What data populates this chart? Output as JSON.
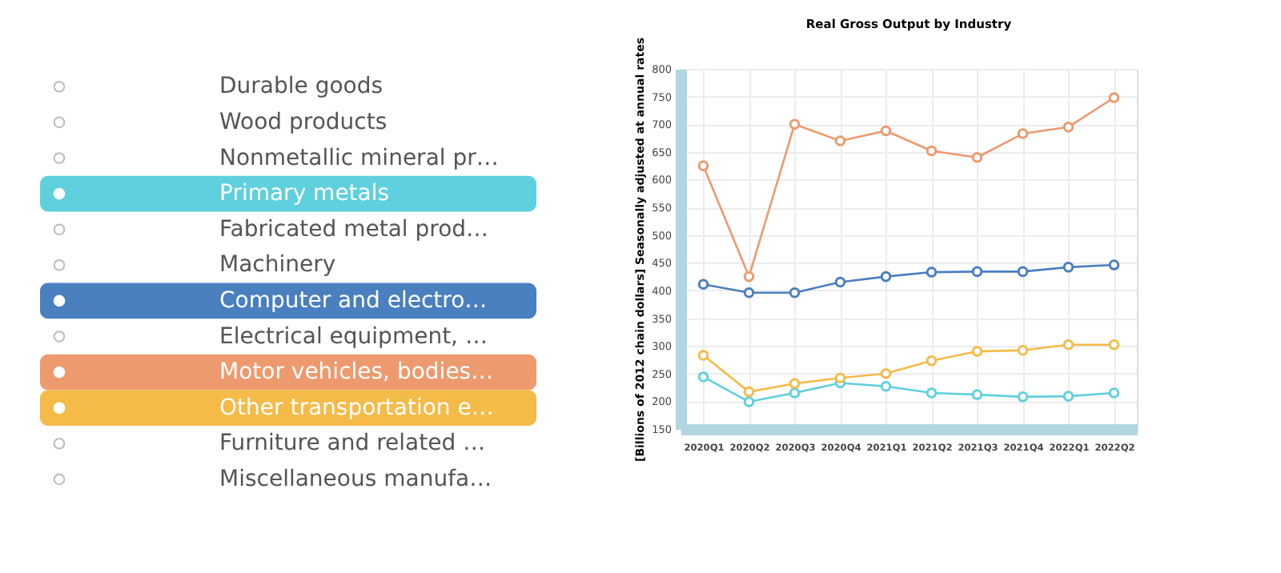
{
  "chart_data": {
    "type": "line",
    "title": "Real Gross Output by Industry",
    "ylabel": "[Billions of 2012 chain dollars] Seasonally adjusted at annual rates",
    "categories": [
      "2020Q1",
      "2020Q2",
      "2020Q3",
      "2020Q4",
      "2021Q1",
      "2021Q2",
      "2021Q3",
      "2021Q4",
      "2022Q1",
      "2022Q2"
    ],
    "ylim": [
      150,
      800
    ],
    "yticks": [
      150,
      200,
      250,
      300,
      350,
      400,
      450,
      500,
      550,
      600,
      650,
      700,
      750,
      800
    ],
    "grid": true,
    "legend": "left",
    "marker": "circle",
    "line_style": "solid",
    "series": [
      {
        "name": "Durable goods",
        "color": null,
        "values": [
          null,
          null,
          null,
          null,
          null,
          null,
          null,
          null,
          null,
          null
        ]
      },
      {
        "name": "Wood products",
        "color": null,
        "values": [
          null,
          null,
          null,
          null,
          null,
          null,
          null,
          null,
          null,
          null
        ]
      },
      {
        "name": "Nonmetallic mineral pr…",
        "color": null,
        "values": [
          null,
          null,
          null,
          null,
          null,
          null,
          null,
          null,
          null,
          null
        ]
      },
      {
        "name": "Primary metals",
        "color": "#5fd0de",
        "values": [
          244,
          199,
          215,
          233,
          227,
          215,
          212,
          208,
          209,
          215
        ]
      },
      {
        "name": "Fabricated metal prod…",
        "color": null,
        "values": [
          null,
          null,
          null,
          null,
          null,
          null,
          null,
          null,
          null,
          null
        ]
      },
      {
        "name": "Machinery",
        "color": null,
        "values": [
          null,
          null,
          null,
          null,
          null,
          null,
          null,
          null,
          null,
          null
        ]
      },
      {
        "name": "Computer and electro…",
        "color": "#4a7fc0",
        "values": [
          411,
          396,
          396,
          415,
          425,
          433,
          434,
          434,
          442,
          446
        ]
      },
      {
        "name": "Electrical equipment, …",
        "color": null,
        "values": [
          null,
          null,
          null,
          null,
          null,
          null,
          null,
          null,
          null,
          null
        ]
      },
      {
        "name": "Motor vehicles, bodies…",
        "color": "#ec9a6e",
        "values": [
          625,
          425,
          700,
          670,
          688,
          652,
          640,
          683,
          695,
          748
        ]
      },
      {
        "name": "Other transportation e…",
        "color": "#f5bb48",
        "values": [
          283,
          217,
          232,
          242,
          250,
          273,
          290,
          292,
          302,
          302
        ]
      },
      {
        "name": "Furniture and related …",
        "color": null,
        "values": [
          null,
          null,
          null,
          null,
          null,
          null,
          null,
          null,
          null,
          null
        ]
      },
      {
        "name": "Miscellaneous manufa…",
        "color": null,
        "values": [
          null,
          null,
          null,
          null,
          null,
          null,
          null,
          null,
          null,
          null
        ]
      }
    ]
  }
}
